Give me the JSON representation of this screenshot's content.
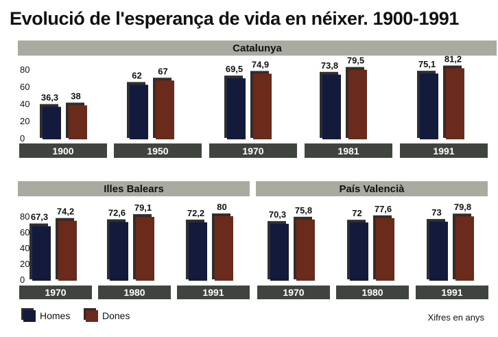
{
  "title": "Evolució de l'esperança de vida en néixer. 1900-1991",
  "legend": {
    "men": "Homes",
    "women": "Dones"
  },
  "note": "Xifres en anys",
  "colors": {
    "men": "#141a3c",
    "women": "#6a2a1c",
    "shadow": "#2f2f2f",
    "banner": "#a9aba1",
    "year_bar": "#3f443f"
  },
  "chart_data": [
    {
      "type": "bar",
      "title": "Catalunya",
      "categories": [
        "1900",
        "1950",
        "1970",
        "1981",
        "1991"
      ],
      "series": [
        {
          "name": "Homes",
          "values": [
            36.3,
            62,
            69.5,
            73.8,
            75.1
          ],
          "labels": [
            "36,3",
            "62",
            "69,5",
            "73,8",
            "75,1"
          ]
        },
        {
          "name": "Dones",
          "values": [
            38,
            67,
            74.9,
            79.5,
            81.2
          ],
          "labels": [
            "38",
            "67",
            "74,9",
            "79,5",
            "81,2"
          ]
        }
      ],
      "yticks": [
        "0",
        "20",
        "40",
        "60",
        "80"
      ],
      "ylim": [
        0,
        80
      ]
    },
    {
      "type": "bar",
      "title": "Illes Balears",
      "categories": [
        "1970",
        "1980",
        "1991"
      ],
      "series": [
        {
          "name": "Homes",
          "values": [
            67.3,
            72.6,
            72.2
          ],
          "labels": [
            "67,3",
            "72,6",
            "72,2"
          ]
        },
        {
          "name": "Dones",
          "values": [
            74.2,
            79.1,
            80
          ],
          "labels": [
            "74,2",
            "79,1",
            "80"
          ]
        }
      ],
      "yticks": [
        "0",
        "20",
        "40",
        "60",
        "80"
      ],
      "ylim": [
        0,
        80
      ]
    },
    {
      "type": "bar",
      "title": "País Valencià",
      "categories": [
        "1970",
        "1980",
        "1991"
      ],
      "series": [
        {
          "name": "Homes",
          "values": [
            70.3,
            72,
            73
          ],
          "labels": [
            "70,3",
            "72",
            "73"
          ]
        },
        {
          "name": "Dones",
          "values": [
            75.8,
            77.6,
            79.8
          ],
          "labels": [
            "75,8",
            "77,6",
            "79,8"
          ]
        }
      ],
      "yticks": [
        "0",
        "20",
        "40",
        "60",
        "80"
      ],
      "ylim": [
        0,
        80
      ]
    }
  ]
}
